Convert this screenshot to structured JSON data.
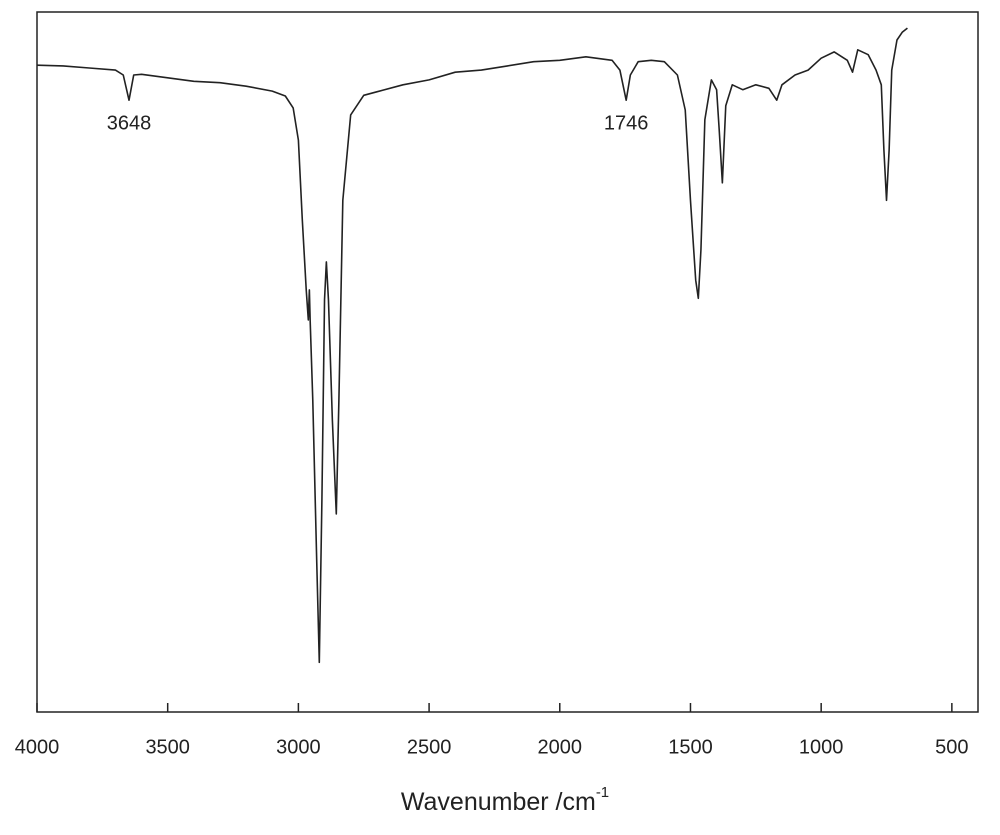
{
  "chart_data": {
    "type": "line",
    "xlabel": "Wavenumber /cm",
    "xlabel_superscript": "-1",
    "annotations": [
      3648,
      1746
    ],
    "xlim": [
      4000,
      400
    ],
    "xticks": [
      4000,
      3500,
      3000,
      2500,
      2000,
      1500,
      1000,
      500
    ],
    "ylim": [
      0,
      100
    ],
    "series": [
      {
        "color": "#222222",
        "x": [
          4000,
          3900,
          3800,
          3700,
          3670,
          3648,
          3630,
          3600,
          3500,
          3400,
          3300,
          3200,
          3100,
          3050,
          3020,
          3000,
          2985,
          2970,
          2962,
          2958,
          2955,
          2945,
          2930,
          2920,
          2910,
          2900,
          2893,
          2885,
          2870,
          2855,
          2845,
          2830,
          2800,
          2750,
          2700,
          2600,
          2500,
          2400,
          2300,
          2200,
          2100,
          2000,
          1900,
          1800,
          1770,
          1746,
          1730,
          1700,
          1650,
          1600,
          1550,
          1520,
          1500,
          1480,
          1470,
          1460,
          1445,
          1420,
          1400,
          1390,
          1378,
          1365,
          1340,
          1300,
          1250,
          1200,
          1170,
          1150,
          1100,
          1050,
          1000,
          950,
          900,
          880,
          860,
          820,
          790,
          770,
          760,
          750,
          740,
          730,
          710,
          690,
          670
        ],
        "values": [
          92.4,
          92.3,
          92.0,
          91.7,
          91.0,
          87.4,
          91.0,
          91.1,
          90.6,
          90.1,
          89.9,
          89.4,
          88.7,
          88.0,
          86.3,
          81.7,
          70.3,
          60.3,
          56.0,
          60.3,
          56.0,
          44.6,
          21.7,
          7.1,
          30.3,
          58.9,
          64.3,
          58.9,
          41.7,
          28.3,
          44.6,
          73.1,
          85.3,
          88.1,
          88.6,
          89.6,
          90.3,
          91.4,
          91.7,
          92.3,
          92.9,
          93.1,
          93.6,
          93.1,
          91.7,
          87.4,
          91.0,
          92.9,
          93.1,
          92.9,
          91.0,
          86.0,
          73.1,
          61.7,
          59.1,
          66.0,
          84.6,
          90.3,
          88.9,
          83.1,
          75.6,
          86.6,
          89.6,
          88.9,
          89.6,
          89.1,
          87.4,
          89.6,
          91.0,
          91.7,
          93.4,
          94.3,
          93.1,
          91.4,
          94.6,
          93.9,
          91.7,
          89.6,
          80.3,
          73.1,
          80.3,
          91.7,
          96.0,
          97.1,
          97.7
        ]
      }
    ]
  }
}
